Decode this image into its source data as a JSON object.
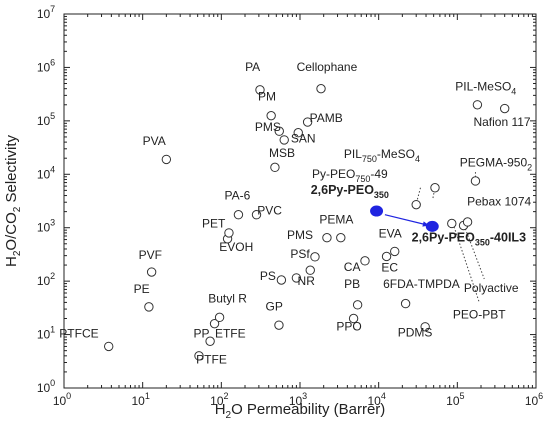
{
  "chart_data": {
    "type": "scatter",
    "xscale": "log",
    "yscale": "log",
    "xlim": [
      1,
      1000000
    ],
    "ylim": [
      1,
      10000000
    ],
    "xlabel": {
      "base": "H",
      "sub": "2",
      "rest": "O Permeability (Barrer)"
    },
    "ylabel": [
      {
        "t": "H",
        "sub": false
      },
      {
        "t": "2",
        "sub": true
      },
      {
        "t": "O/CO",
        "sub": false
      },
      {
        "t": "2",
        "sub": true
      },
      {
        "t": " Selectivity",
        "sub": false
      }
    ],
    "x_ticks": [
      {
        "v": 1,
        "b": "10",
        "e": "0"
      },
      {
        "v": 10,
        "b": "10",
        "e": "1"
      },
      {
        "v": 100,
        "b": "10",
        "e": "2"
      },
      {
        "v": 1000,
        "b": "10",
        "e": "3"
      },
      {
        "v": 10000,
        "b": "10",
        "e": "4"
      },
      {
        "v": 100000,
        "b": "10",
        "e": "5"
      },
      {
        "v": 1000000,
        "b": "10",
        "e": "6"
      }
    ],
    "y_ticks": [
      {
        "v": 1,
        "b": "10",
        "e": "0"
      },
      {
        "v": 10,
        "b": "10",
        "e": "1"
      },
      {
        "v": 100,
        "b": "10",
        "e": "2"
      },
      {
        "v": 1000,
        "b": "10",
        "e": "3"
      },
      {
        "v": 10000,
        "b": "10",
        "e": "4"
      },
      {
        "v": 100000,
        "b": "10",
        "e": "5"
      },
      {
        "v": 1000000,
        "b": "10",
        "e": "6"
      },
      {
        "v": 10000000,
        "b": "10",
        "e": "7"
      }
    ],
    "series": [
      {
        "marker": "open-circle",
        "points": [
          {
            "x": 3.7,
            "y": 6
          },
          {
            "x": 12,
            "y": 33
          },
          {
            "x": 13,
            "y": 148
          },
          {
            "x": 20,
            "y": 19000
          },
          {
            "x": 52,
            "y": 4
          },
          {
            "x": 72,
            "y": 7.5
          },
          {
            "x": 82,
            "y": 16
          },
          {
            "x": 95,
            "y": 21
          },
          {
            "x": 120,
            "y": 620
          },
          {
            "x": 125,
            "y": 800
          },
          {
            "x": 165,
            "y": 1750
          },
          {
            "x": 280,
            "y": 1750
          },
          {
            "x": 310,
            "y": 380000
          },
          {
            "x": 480,
            "y": 13500
          },
          {
            "x": 430,
            "y": 125000
          },
          {
            "x": 545,
            "y": 64000
          },
          {
            "x": 630,
            "y": 44000
          },
          {
            "x": 950,
            "y": 60000
          },
          {
            "x": 1250,
            "y": 95000
          },
          {
            "x": 1850,
            "y": 400000
          },
          {
            "x": 580,
            "y": 105
          },
          {
            "x": 540,
            "y": 15
          },
          {
            "x": 900,
            "y": 115
          },
          {
            "x": 1350,
            "y": 160
          },
          {
            "x": 1550,
            "y": 285
          },
          {
            "x": 2200,
            "y": 650
          },
          {
            "x": 3300,
            "y": 650
          },
          {
            "x": 4800,
            "y": 20
          },
          {
            "x": 5400,
            "y": 36
          },
          {
            "x": 6700,
            "y": 240
          },
          {
            "x": 12600,
            "y": 290
          },
          {
            "x": 16000,
            "y": 360
          },
          {
            "x": 22000,
            "y": 38
          },
          {
            "x": 30000,
            "y": 2700
          },
          {
            "x": 39000,
            "y": 14
          },
          {
            "x": 52000,
            "y": 5600
          },
          {
            "x": 85000,
            "y": 1200
          },
          {
            "x": 120000,
            "y": 1100
          },
          {
            "x": 135000,
            "y": 1280
          },
          {
            "x": 170000,
            "y": 7500
          },
          {
            "x": 180000,
            "y": 200000
          },
          {
            "x": 400000,
            "y": 170000
          }
        ]
      },
      {
        "marker": "filled-circle",
        "color": "#1f24e0",
        "points": [
          {
            "x": 9400,
            "y": 2050
          },
          {
            "x": 48000,
            "y": 1060
          }
        ]
      }
    ],
    "labels": [
      {
        "text": "PTFCE",
        "x": 1.55,
        "y": 8.8
      },
      {
        "text": "PE",
        "x": 9.7,
        "y": 60
      },
      {
        "text": "PVF",
        "x": 12.5,
        "y": 260
      },
      {
        "text": "PVA",
        "x": 14,
        "y": 35000
      },
      {
        "text": "PTFE",
        "x": 75,
        "y": 2.9
      },
      {
        "text": "PP",
        "x": 56,
        "y": 8.8
      },
      {
        "text": "ETFE",
        "x": 130,
        "y": 8.8
      },
      {
        "text": "Butyl R",
        "x": 120,
        "y": 40
      },
      {
        "text": "EVOH",
        "x": 155,
        "y": 370
      },
      {
        "text": "PET",
        "x": 80,
        "y": 1000
      },
      {
        "text": "PA-6",
        "x": 160,
        "y": 3400
      },
      {
        "text": "PVC",
        "x": 410,
        "y": 1750
      },
      {
        "text": "PA",
        "x": 250,
        "y": 850000
      },
      {
        "text": "PM",
        "x": 380,
        "y": 240000
      },
      {
        "text": "PMS",
        "x": 390,
        "y": 64000
      },
      {
        "text": "SAN",
        "x": 1100,
        "y": 39000
      },
      {
        "text": "MSB",
        "x": 590,
        "y": 21000
      },
      {
        "text": "PAMB",
        "x": 2150,
        "y": 95000
      },
      {
        "text": "Cellophane",
        "x": 2200,
        "y": 850000
      },
      {
        "text": "PMS",
        "x": 1000,
        "y": 620
      },
      {
        "text": "PEMA",
        "x": 2900,
        "y": 1200
      },
      {
        "text": "PSf",
        "x": 1000,
        "y": 270
      },
      {
        "text": "PS",
        "x": 390,
        "y": 105
      },
      {
        "text": "NR",
        "x": 1200,
        "y": 85
      },
      {
        "text": "CA",
        "x": 4600,
        "y": 155
      },
      {
        "text": "PB",
        "x": 4600,
        "y": 75
      },
      {
        "text": "GP",
        "x": 470,
        "y": 28
      },
      {
        "text": "PPO",
        "x": 4200,
        "y": 12
      },
      {
        "text": "EVA",
        "x": 14000,
        "y": 650
      },
      {
        "text": "EC",
        "x": 13800,
        "y": 150
      },
      {
        "text": "6FDA-TMPDA",
        "x": 35000,
        "y": 75
      },
      {
        "text": "PDMS",
        "x": 29000,
        "y": 9.3
      },
      {
        "text": "PEO-PBT",
        "x": 190000,
        "y": 20
      },
      {
        "text": "Polyactive",
        "x": 270000,
        "y": 62
      },
      {
        "text": "Pebax 1074",
        "x": 340000,
        "y": 2600
      },
      {
        "text": "Nafion 117",
        "x": 370000,
        "y": 80000
      },
      {
        "text": "PIL-MeSO",
        "sub": "4",
        "x": 230000,
        "y": 370000
      },
      {
        "text": "PEGMA-950",
        "sub": "2",
        "x": 310000,
        "y": 14000
      },
      {
        "text": "PIL",
        "sub": "750",
        "tail": "-MeSO",
        "sub2": "4",
        "x": 11000,
        "y": 20000
      },
      {
        "text": "Py-PEO",
        "sub": "750",
        "tail": "-49",
        "x": 4300,
        "y": 8600
      },
      {
        "text": "2,6Py-PEO",
        "sub": "350",
        "x": 4300,
        "y": 4300,
        "highlight": true
      },
      {
        "text": "2,6Py-PEO",
        "sub": "350",
        "tail": "-40IL3",
        "x": 140000,
        "y": 550,
        "highlight": true
      }
    ],
    "leader_lines": [
      {
        "from": [
          34000,
          5600
        ],
        "to": [
          30000,
          2800
        ]
      },
      {
        "from": [
          49000,
          3600
        ],
        "to": [
          52000,
          5700
        ]
      },
      {
        "from": [
          88000,
          1200
        ],
        "to": [
          190000,
          40
        ]
      },
      {
        "from": [
          122000,
          1100
        ],
        "to": [
          220000,
          110
        ]
      },
      {
        "from": [
          170000,
          11000
        ],
        "to": [
          170000,
          7600
        ]
      }
    ],
    "arrow": {
      "from": [
        12000,
        1750
      ],
      "to": [
        44000,
        1100
      ],
      "color": "#1f24e0"
    },
    "highlight_color": "#1f24e0"
  }
}
